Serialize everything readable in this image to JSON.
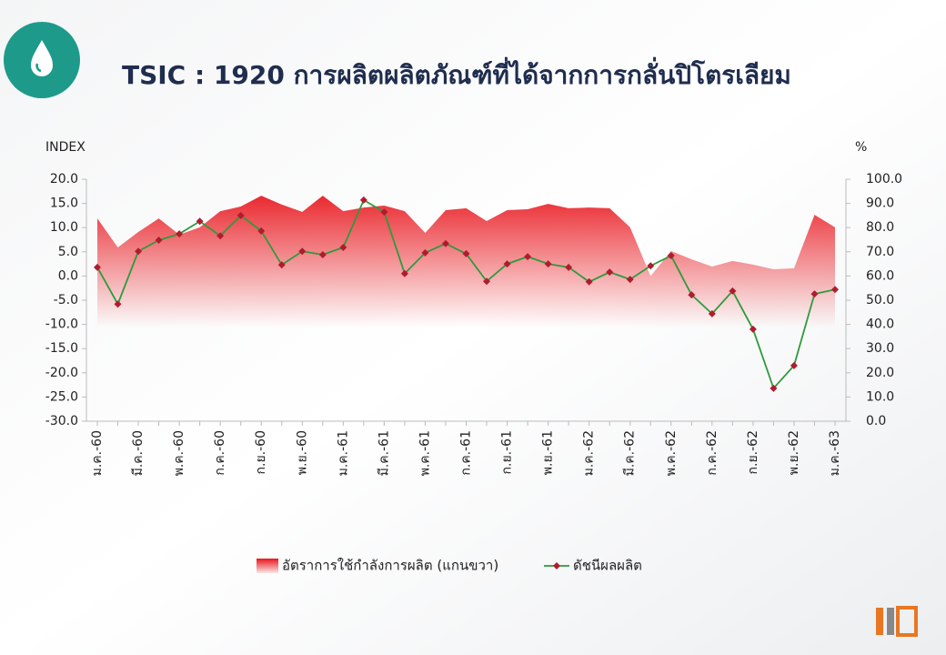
{
  "chart_data": {
    "type": "combo",
    "title": "TSIC : 1920  การผลิตผลิตภัณฑ์ที่ได้จากการกลั่นปิโตรเลียม",
    "y_label": "INDEX",
    "y2_label": "%",
    "categories": [
      "ม.ค.-60",
      null,
      "มี.ค.-60",
      null,
      "พ.ค.-60",
      null,
      "ก.ค.-60",
      null,
      "ก.ย.-60",
      null,
      "พ.ย.-60",
      null,
      "ม.ค.-61",
      null,
      "มี.ค.-61",
      null,
      "พ.ค.-61",
      null,
      "ก.ค.-61",
      null,
      "ก.ย.-61",
      null,
      "พ.ย.-61",
      null,
      "ม.ค.-62",
      null,
      "มี.ค.-62",
      null,
      "พ.ค.-62",
      null,
      "ก.ค.-62",
      null,
      "ก.ย.-62",
      null,
      "พ.ย.-62",
      null,
      "ม.ค.-63"
    ],
    "series": [
      {
        "name": "อัตราการใช้กำลังการผลิต (แกนขวา)",
        "type": "area",
        "axis": "y2",
        "color": "#e8141b",
        "values": [
          83.8,
          71.8,
          78.2,
          83.8,
          77.1,
          80.1,
          86.8,
          88.7,
          93.2,
          89.5,
          86.5,
          93.2,
          86.8,
          88.3,
          89.1,
          86.8,
          77.8,
          87.2,
          88.0,
          82.7,
          87.2,
          87.6,
          89.8,
          88.0,
          88.3,
          88.0,
          80.1,
          60.0,
          70.3,
          66.9,
          63.9,
          66.2,
          64.7,
          62.8,
          63.2,
          85.3,
          80.1
        ]
      },
      {
        "name": "ดัชนีผลผลิต",
        "type": "line",
        "color": "#2e9a3c",
        "marker_color": "#b01c2e",
        "values": [
          1.8,
          -5.8,
          5.1,
          7.4,
          8.7,
          11.3,
          8.3,
          12.5,
          9.3,
          2.3,
          5.1,
          4.4,
          5.9,
          15.7,
          13.2,
          0.5,
          4.8,
          6.7,
          4.6,
          -1.1,
          2.5,
          4.0,
          2.5,
          1.8,
          -1.2,
          0.8,
          -0.7,
          2.1,
          4.2,
          -3.9,
          -7.8,
          -3.1,
          -11.0,
          -23.2,
          -18.5,
          -3.7,
          -2.8
        ]
      }
    ],
    "ylim": [
      -30,
      20
    ],
    "yticks": [
      {
        "value": -30,
        "label": "-30.0"
      },
      {
        "value": -25,
        "label": "-25.0"
      },
      {
        "value": -20,
        "label": "-20.0"
      },
      {
        "value": -15,
        "label": "-15.0"
      },
      {
        "value": -10,
        "label": "-10.0"
      },
      {
        "value": -5,
        "label": "-5.0"
      },
      {
        "value": 0,
        "label": "0.0"
      },
      {
        "value": 5,
        "label": "5.0"
      },
      {
        "value": 10,
        "label": "10.0"
      },
      {
        "value": 15,
        "label": "15.0"
      },
      {
        "value": 20,
        "label": "20.0"
      }
    ],
    "y2lim": [
      0,
      100
    ],
    "y2ticks": [
      {
        "value": 0,
        "label": "0.0"
      },
      {
        "value": 10,
        "label": "10.0"
      },
      {
        "value": 20,
        "label": "20.0"
      },
      {
        "value": 30,
        "label": "30.0"
      },
      {
        "value": 40,
        "label": "40.0"
      },
      {
        "value": 50,
        "label": "50.0"
      },
      {
        "value": 60,
        "label": "60.0"
      },
      {
        "value": 70,
        "label": "70.0"
      },
      {
        "value": 80,
        "label": "80.0"
      },
      {
        "value": 90,
        "label": "90.0"
      },
      {
        "value": 100,
        "label": "100.0"
      }
    ],
    "grid": false
  }
}
